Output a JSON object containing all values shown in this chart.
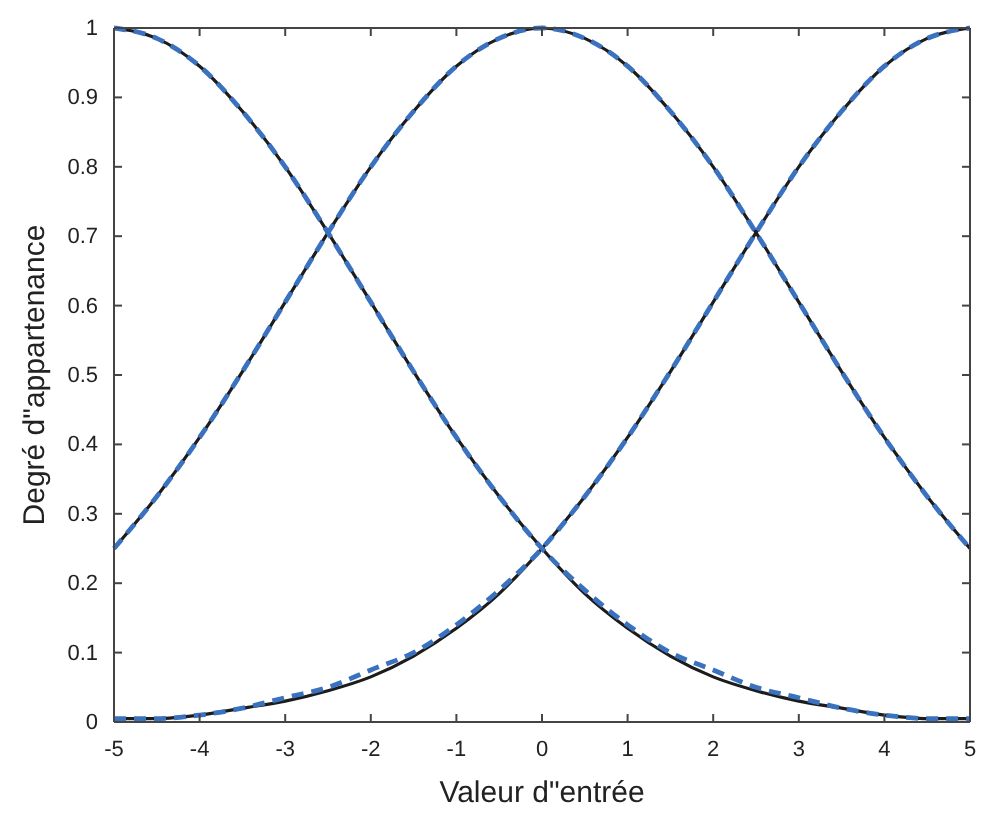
{
  "chart_data": {
    "type": "line",
    "xlabel": "Valeur d\"entrée",
    "ylabel": "Degré d\"appartenance",
    "x": [
      -5,
      -4.5,
      -4,
      -3.5,
      -3,
      -2.5,
      -2,
      -1.5,
      -1,
      -0.5,
      0,
      0.5,
      1,
      1.5,
      2,
      2.5,
      3,
      3.5,
      4,
      4.5,
      5
    ],
    "xlim": [
      -5,
      5
    ],
    "xticks": [
      -5,
      -4,
      -3,
      -2,
      -1,
      0,
      1,
      2,
      3,
      4,
      5
    ],
    "ylim": [
      0,
      1
    ],
    "yticks": [
      0,
      0.1,
      0.2,
      0.3,
      0.4,
      0.5,
      0.6,
      0.7,
      0.8,
      0.9,
      1
    ],
    "series": [
      {
        "color": "#1c1c1c",
        "line_style": "solid",
        "values": [
          1,
          0.985,
          0.945,
          0.88,
          0.8,
          0.705,
          0.605,
          0.505,
          0.41,
          0.325,
          0.25,
          0.185,
          0.135,
          0.095,
          0.065,
          0.045,
          0.03,
          0.02,
          0.01,
          0.005,
          0.005
        ]
      },
      {
        "color": "#1c1c1c",
        "line_style": "solid",
        "values": [
          0.25,
          0.325,
          0.41,
          0.505,
          0.605,
          0.705,
          0.8,
          0.88,
          0.945,
          0.985,
          1,
          0.985,
          0.945,
          0.88,
          0.8,
          0.705,
          0.605,
          0.505,
          0.41,
          0.325,
          0.25
        ]
      },
      {
        "color": "#1c1c1c",
        "line_style": "solid",
        "values": [
          0.005,
          0.005,
          0.01,
          0.02,
          0.03,
          0.045,
          0.065,
          0.095,
          0.135,
          0.185,
          0.25,
          0.325,
          0.41,
          0.505,
          0.605,
          0.705,
          0.8,
          0.88,
          0.945,
          0.985,
          1
        ]
      },
      {
        "color": "#3b72c0",
        "line_style": "dashed",
        "values": [
          1,
          0.985,
          0.945,
          0.88,
          0.8,
          0.705,
          0.605,
          0.505,
          0.41,
          0.325,
          0.25,
          0.19,
          0.14,
          0.1,
          0.075,
          0.05,
          0.035,
          0.02,
          0.01,
          0.005,
          0.005
        ]
      },
      {
        "color": "#3b72c0",
        "line_style": "dashed",
        "values": [
          0.25,
          0.325,
          0.41,
          0.505,
          0.605,
          0.705,
          0.8,
          0.88,
          0.945,
          0.985,
          1,
          0.985,
          0.945,
          0.88,
          0.8,
          0.705,
          0.605,
          0.505,
          0.41,
          0.325,
          0.25
        ]
      },
      {
        "color": "#3b72c0",
        "line_style": "dashed",
        "values": [
          0.005,
          0.005,
          0.01,
          0.02,
          0.035,
          0.05,
          0.075,
          0.1,
          0.14,
          0.19,
          0.25,
          0.325,
          0.41,
          0.505,
          0.605,
          0.705,
          0.8,
          0.88,
          0.945,
          0.985,
          1
        ]
      }
    ]
  }
}
